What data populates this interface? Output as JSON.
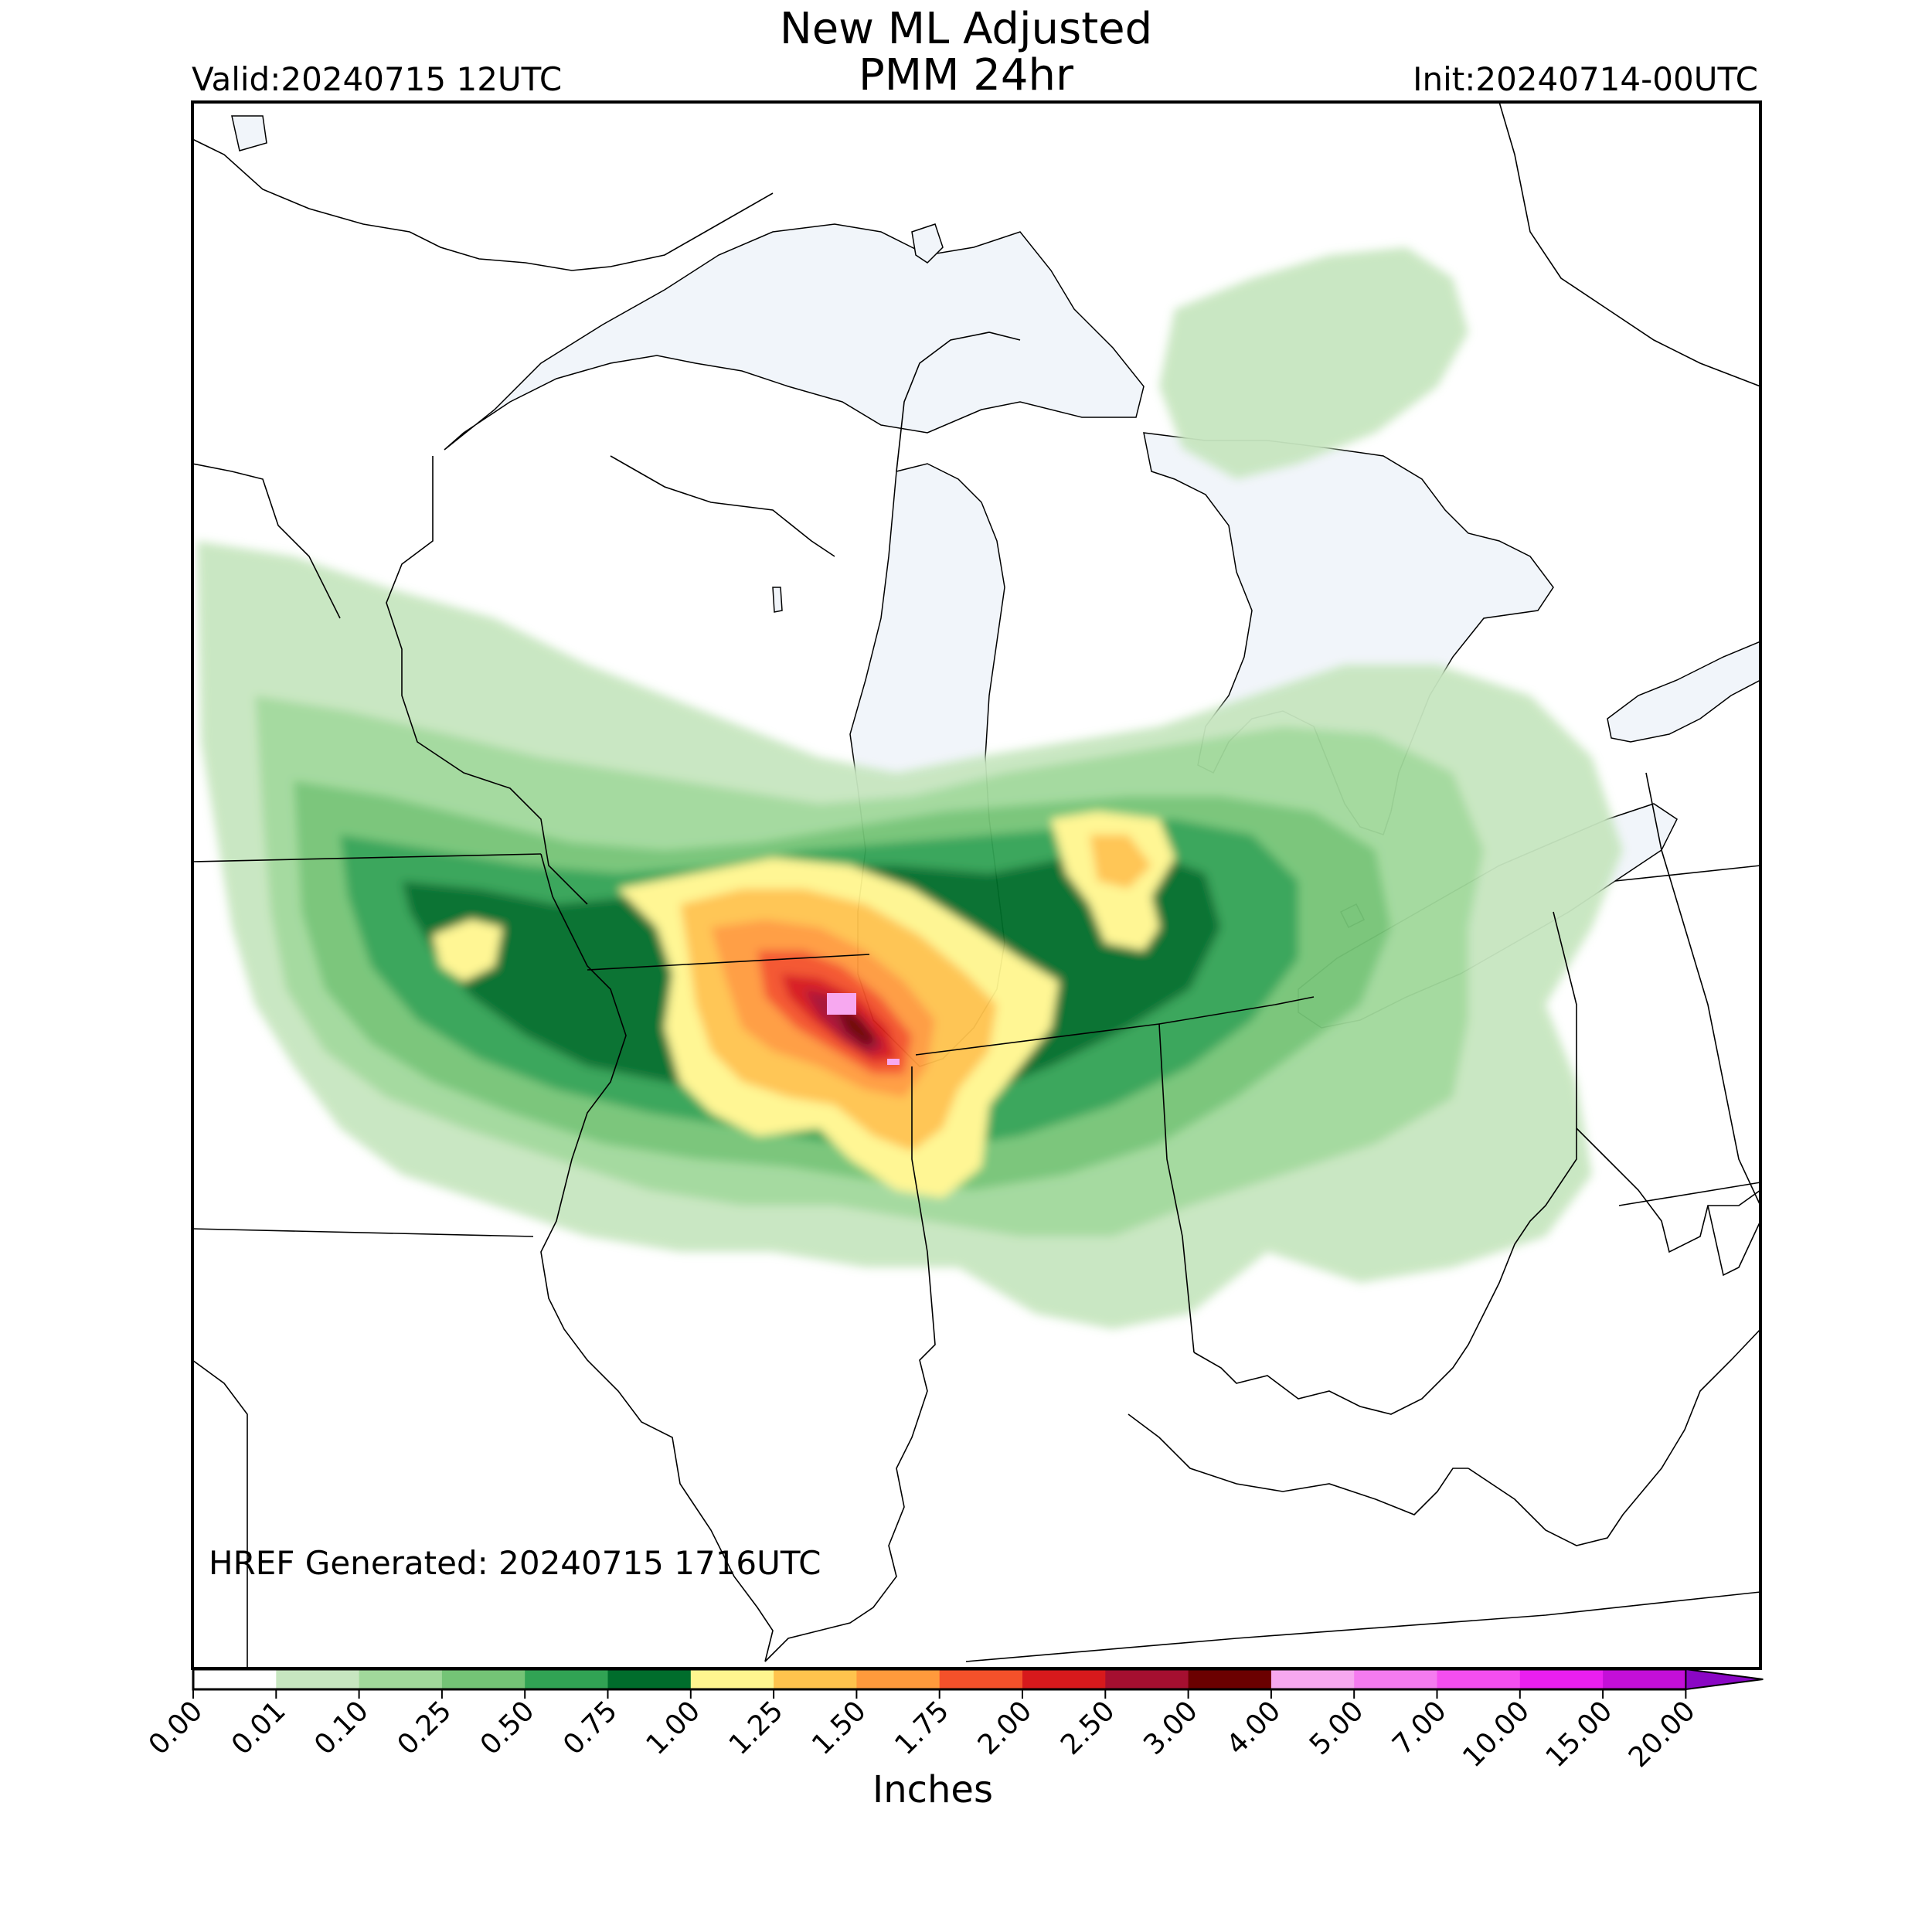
{
  "title": {
    "line1": "New ML Adjusted",
    "line2": "PMM 24hr"
  },
  "valid": "Valid:20240715 12UTC",
  "init": "Init:20240714-00UTC",
  "generated": "HREF Generated: 20240715 1716UTC",
  "colorbar": {
    "units": "Inches",
    "ticks": [
      "0.00",
      "0.01",
      "0.10",
      "0.25",
      "0.50",
      "0.75",
      "1.00",
      "1.25",
      "1.50",
      "1.75",
      "2.00",
      "2.50",
      "3.00",
      "4.00",
      "5.00",
      "7.00",
      "10.00",
      "15.00",
      "20.00"
    ],
    "colors": [
      "#ffffff",
      "#c7e6c0",
      "#a1d99b",
      "#74c476",
      "#31a354",
      "#006d2c",
      "#fff68f",
      "#ffc34d",
      "#ff9a3c",
      "#f4512a",
      "#d7191c",
      "#a50f30",
      "#6b0000",
      "#f7a8f0",
      "#f57bf0",
      "#f44ef0",
      "#ea1ff0",
      "#c40fd8",
      "#8a07c4"
    ],
    "extend": "max-arrow"
  },
  "map": {
    "region": "Great Lakes / Upper Midwest",
    "lake_color": "#f1f5fa",
    "border_color": "#000000"
  }
}
